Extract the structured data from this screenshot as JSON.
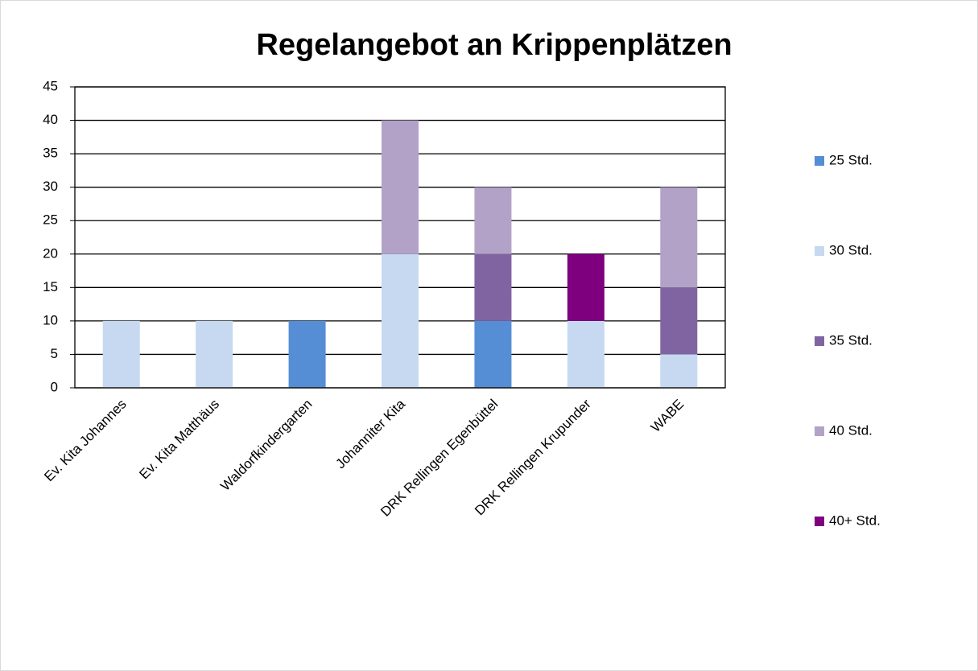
{
  "chart_data": {
    "type": "stacked_bar",
    "title": "Regelangebot an Krippenplätzen",
    "categories": [
      "Ev. Kita Johannes",
      "Ev. Kita Matthäus",
      "Waldorfkindergarten",
      "Johanniter Kita",
      "DRK Rellingen Egenbüttel",
      "DRK Rellingen Krupunder",
      "WABE"
    ],
    "series": [
      {
        "name": "25 Std.",
        "color": "#558ed5",
        "values": [
          0,
          0,
          10,
          0,
          10,
          0,
          0
        ]
      },
      {
        "name": "30 Std.",
        "color": "#c6d9f1",
        "values": [
          10,
          10,
          0,
          20,
          0,
          10,
          5
        ]
      },
      {
        "name": "35 Std.",
        "color": "#8064a2",
        "values": [
          0,
          0,
          0,
          0,
          10,
          0,
          10
        ]
      },
      {
        "name": "40 Std.",
        "color": "#b3a2c7",
        "values": [
          0,
          0,
          0,
          20,
          10,
          0,
          15
        ]
      },
      {
        "name": "40+ Std.",
        "color": "#7f007f",
        "values": [
          0,
          0,
          0,
          0,
          0,
          10,
          0
        ]
      }
    ],
    "ylim": [
      0,
      45
    ],
    "yticks": [
      0,
      5,
      10,
      15,
      20,
      25,
      30,
      35,
      40,
      45
    ],
    "grid": true,
    "legend": "right"
  }
}
